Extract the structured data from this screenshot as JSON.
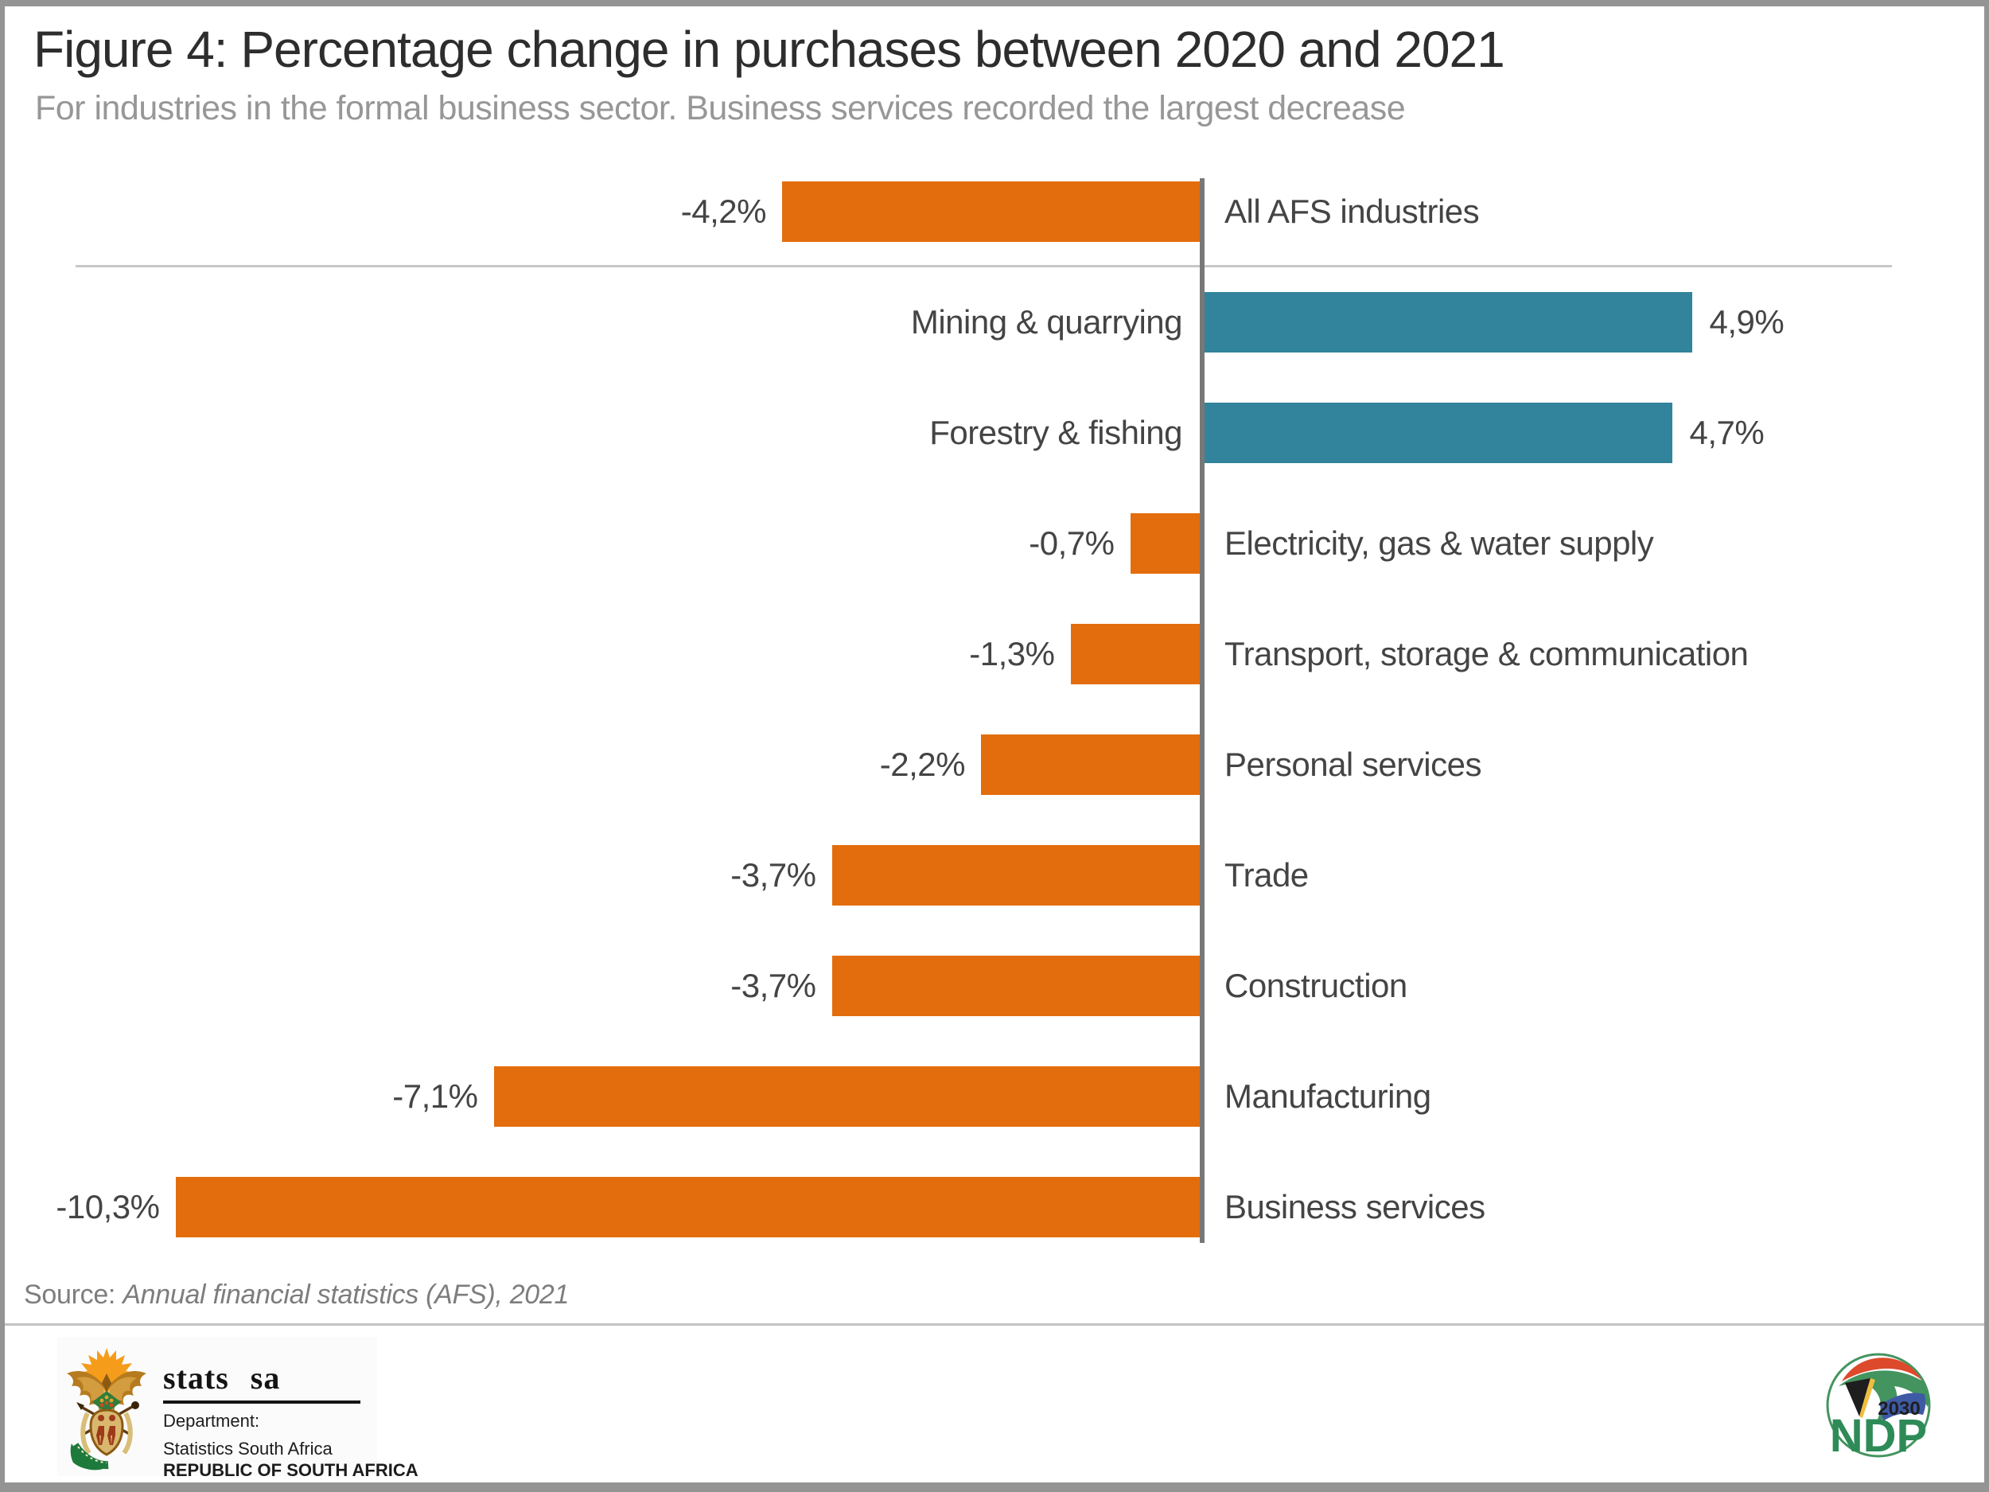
{
  "title": "Figure 4: Percentage change in purchases between 2020 and 2021",
  "subtitle": "For industries in the formal business sector. Business services recorded the largest decrease",
  "source": {
    "prefix": "Source: ",
    "text": "Annual financial statistics (AFS), 2021"
  },
  "chart_data": {
    "type": "bar",
    "orientation": "horizontal",
    "unit": "%",
    "title": "Percentage change in purchases between 2020 and 2021",
    "categories": [
      "All AFS industries",
      "Mining & quarrying",
      "Forestry & fishing",
      "Electricity, gas & water supply",
      "Transport, storage & communication",
      "Personal services",
      "Trade",
      "Construction",
      "Manufacturing",
      "Business services"
    ],
    "values": [
      -4.2,
      4.9,
      4.7,
      -0.7,
      -1.3,
      -2.2,
      -3.7,
      -3.7,
      -7.1,
      -10.3
    ],
    "value_labels": [
      "-4,2%",
      "4,9%",
      "4,7%",
      "-0,7%",
      "-1,3%",
      "-2,2%",
      "-3,7%",
      "-3,7%",
      "-7,1%",
      "-10,3%"
    ],
    "bar_colors": {
      "negative": "#E36D0C",
      "positive": "#31849B"
    },
    "xlim": [
      -10.3,
      4.9
    ],
    "grid": "none",
    "legend": "none",
    "zero_axis_line": true,
    "separator_after_first_row": true
  },
  "footer": {
    "statssa": {
      "brand": "stats sa",
      "dept_line1": "Department:",
      "dept_line2": "Statistics South Africa",
      "dept_line3": "REPUBLIC OF SOUTH AFRICA"
    },
    "ndp": {
      "year": "2030",
      "acronym": "NDP"
    }
  }
}
